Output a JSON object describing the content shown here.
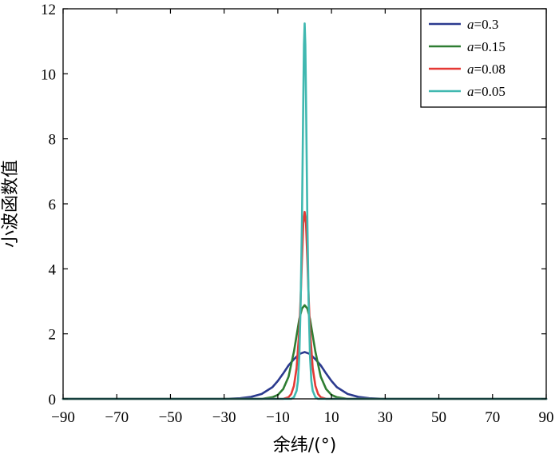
{
  "chart_data": {
    "type": "line",
    "title": "",
    "xlabel": "余纬/(°)",
    "ylabel": "小波函数值",
    "xlim": [
      -90,
      90
    ],
    "ylim": [
      0,
      12
    ],
    "xticks": [
      -90,
      -70,
      -50,
      -30,
      -10,
      10,
      30,
      50,
      70,
      90
    ],
    "xtick_labels": [
      "−90",
      "−70",
      "−50",
      "−30",
      "−10",
      "10",
      "30",
      "50",
      "70",
      "90"
    ],
    "yticks": [
      0,
      2,
      4,
      6,
      8,
      10,
      12
    ],
    "ytick_labels": [
      "0",
      "2",
      "4",
      "6",
      "8",
      "10",
      "12"
    ],
    "grid": false,
    "legend_position": "top-right",
    "series": [
      {
        "name": "a=0.3",
        "name_var": "a",
        "name_value": "=0.3",
        "color": "#2b3a8f",
        "x": [
          -90,
          -30,
          -24,
          -20,
          -16,
          -12,
          -10,
          -8,
          -6,
          -4,
          -2,
          0,
          2,
          4,
          6,
          8,
          10,
          12,
          16,
          20,
          24,
          30,
          90
        ],
        "y": [
          0,
          0,
          0.02,
          0.06,
          0.15,
          0.36,
          0.55,
          0.78,
          1.03,
          1.22,
          1.38,
          1.44,
          1.38,
          1.22,
          1.03,
          0.78,
          0.55,
          0.36,
          0.15,
          0.06,
          0.02,
          0,
          0
        ]
      },
      {
        "name": "a=0.15",
        "name_var": "a",
        "name_value": "=0.15",
        "color": "#2e7d32",
        "x": [
          -90,
          -16,
          -12,
          -10,
          -8,
          -6,
          -4,
          -3,
          -2,
          -1,
          0,
          1,
          2,
          3,
          4,
          6,
          8,
          10,
          12,
          16,
          90
        ],
        "y": [
          0,
          0,
          0.05,
          0.12,
          0.3,
          0.68,
          1.45,
          1.95,
          2.45,
          2.78,
          2.88,
          2.78,
          2.45,
          1.95,
          1.45,
          0.68,
          0.3,
          0.12,
          0.05,
          0,
          0
        ]
      },
      {
        "name": "a=0.08",
        "name_var": "a",
        "name_value": "=0.08",
        "color": "#e53935",
        "x": [
          -90,
          -8,
          -6,
          -5,
          -4,
          -3,
          -2,
          -1.5,
          -1,
          -0.5,
          0,
          0.5,
          1,
          1.5,
          2,
          3,
          4,
          5,
          6,
          8,
          90
        ],
        "y": [
          0,
          0,
          0.05,
          0.15,
          0.4,
          0.95,
          2.1,
          3.1,
          4.3,
          5.4,
          5.75,
          5.4,
          4.3,
          3.1,
          2.1,
          0.95,
          0.4,
          0.15,
          0.05,
          0,
          0
        ]
      },
      {
        "name": "a=0.05",
        "name_var": "a",
        "name_value": "=0.05",
        "color": "#40b8b0",
        "x": [
          -90,
          -5,
          -4,
          -3,
          -2.5,
          -2,
          -1.5,
          -1,
          -0.5,
          -0.25,
          0,
          0.25,
          0.5,
          1,
          1.5,
          2,
          2.5,
          3,
          4,
          5,
          90
        ],
        "y": [
          0,
          0,
          0.05,
          0.25,
          0.55,
          1.3,
          2.9,
          5.5,
          9.3,
          10.9,
          11.55,
          10.9,
          9.3,
          5.5,
          2.9,
          1.3,
          0.55,
          0.25,
          0.05,
          0,
          0
        ]
      }
    ]
  }
}
